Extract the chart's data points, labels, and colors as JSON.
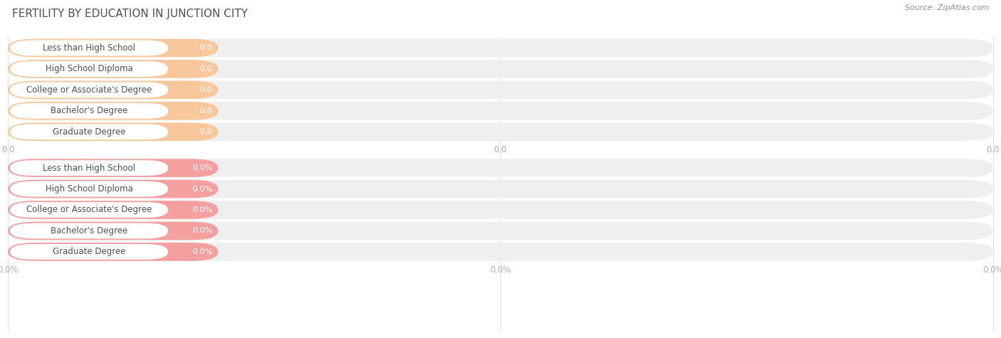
{
  "title": "FERTILITY BY EDUCATION IN JUNCTION CITY",
  "source": "Source: ZipAtlas.com",
  "categories": [
    "Less than High School",
    "High School Diploma",
    "College or Associate's Degree",
    "Bachelor's Degree",
    "Graduate Degree"
  ],
  "values_top": [
    0.0,
    0.0,
    0.0,
    0.0,
    0.0
  ],
  "values_bottom": [
    0.0,
    0.0,
    0.0,
    0.0,
    0.0
  ],
  "labels_top": [
    "0.0",
    "0.0",
    "0.0",
    "0.0",
    "0.0"
  ],
  "labels_bottom": [
    "0.0%",
    "0.0%",
    "0.0%",
    "0.0%",
    "0.0%"
  ],
  "bar_color_top": "#F8C89C",
  "bar_color_bottom": "#F4A0A0",
  "bar_bg_color": "#EFEFEF",
  "text_color": "#505050",
  "title_color": "#505050",
  "source_color": "#909090",
  "axis_tick_color": "#B0B0B0",
  "grid_color": "#DDDDDD",
  "background_color": "#FFFFFF",
  "x_tick_labels_top": [
    "0.0",
    "0.0",
    "0.0"
  ],
  "x_tick_labels_bottom": [
    "0.0%",
    "0.0%",
    "0.0%"
  ]
}
